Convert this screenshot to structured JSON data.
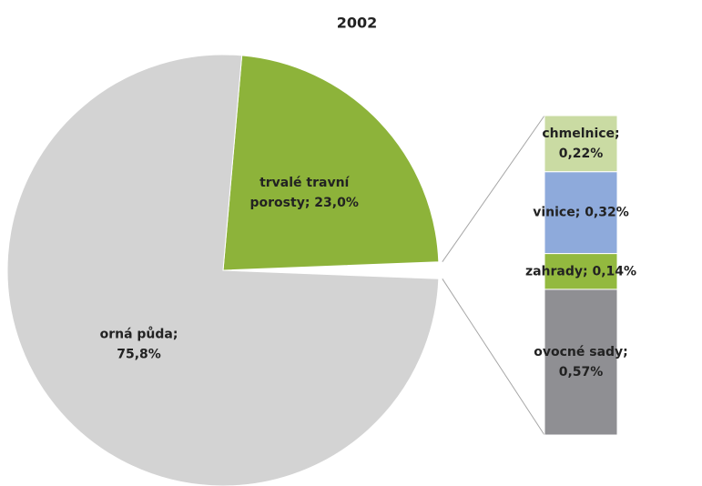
{
  "chart_data": {
    "type": "pie-of-bar",
    "title": "2002",
    "pie": {
      "values": [
        23.0,
        75.8
      ],
      "colors": [
        "#8db33a",
        "#d3d3d3"
      ],
      "value_labels": [
        [
          "trvalé travní",
          "porosty; 23,0%"
        ],
        [
          "orná půda;",
          "75,8%"
        ]
      ]
    },
    "bar": {
      "values": [
        0.22,
        0.32,
        0.14,
        0.57
      ],
      "colors": [
        "#cadba3",
        "#8eaadb",
        "#93b93f",
        "#8f8f93"
      ],
      "value_labels": [
        [
          "chmelnice;",
          "0,22%"
        ],
        [
          "vinice; 0,32%"
        ],
        [
          "zahrady; 0,14%"
        ],
        [
          "ovocné sady;",
          "0,57%"
        ]
      ]
    }
  }
}
